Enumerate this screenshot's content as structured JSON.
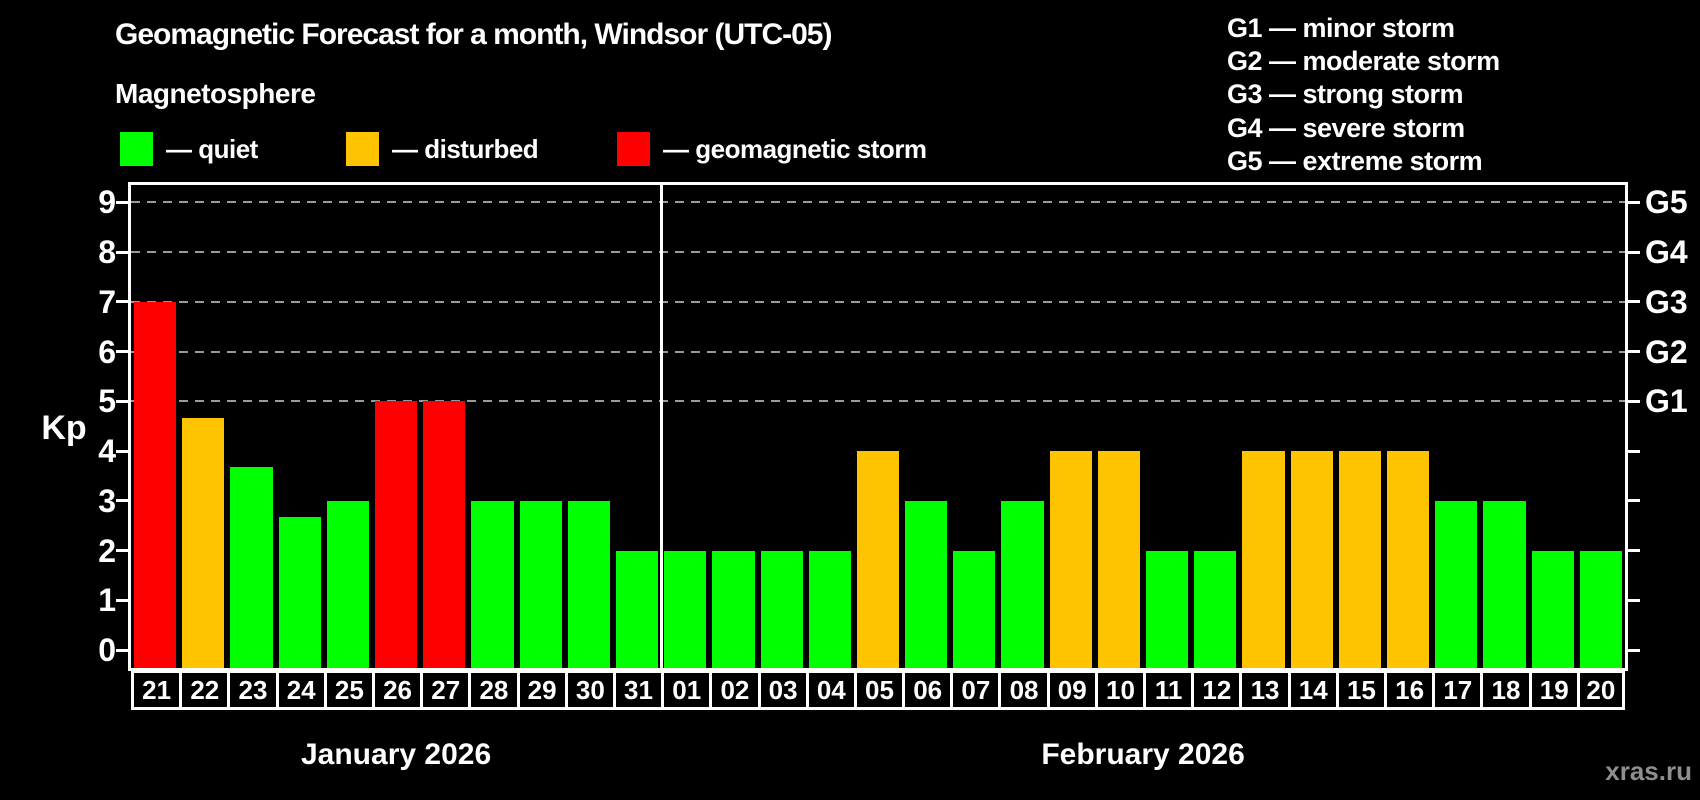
{
  "title": "Geomagnetic Forecast for a month, Windsor (UTC-05)",
  "subtitle": "Magnetosphere",
  "legend": {
    "items": [
      {
        "key": "quiet",
        "label": "— quiet",
        "color": "#00ff00"
      },
      {
        "key": "disturbed",
        "label": "— disturbed",
        "color": "#ffc400"
      },
      {
        "key": "storm",
        "label": "— geomagnetic storm",
        "color": "#ff0000"
      }
    ]
  },
  "g_legend": {
    "items": [
      "G1 — minor storm",
      "G2 — moderate storm",
      "G3 — strong storm",
      "G4 — severe storm",
      "G5 — extreme storm"
    ]
  },
  "y_axis": {
    "label": "Kp",
    "ticks": [
      0,
      1,
      2,
      3,
      4,
      5,
      6,
      7,
      8,
      9
    ]
  },
  "right_axis": {
    "labels": [
      {
        "text": "G1",
        "value": 5
      },
      {
        "text": "G2",
        "value": 6
      },
      {
        "text": "G3",
        "value": 7
      },
      {
        "text": "G4",
        "value": 8
      },
      {
        "text": "G5",
        "value": 9
      }
    ]
  },
  "watermark": "xras.ru",
  "chart_data": {
    "type": "bar",
    "categories": [
      "21",
      "22",
      "23",
      "24",
      "25",
      "26",
      "27",
      "28",
      "29",
      "30",
      "31",
      "01",
      "02",
      "03",
      "04",
      "05",
      "06",
      "07",
      "08",
      "09",
      "10",
      "11",
      "12",
      "13",
      "14",
      "15",
      "16",
      "17",
      "18",
      "19",
      "20"
    ],
    "values": [
      7,
      4.67,
      3.67,
      2.67,
      3,
      5,
      5,
      3,
      3,
      3,
      2,
      2,
      2,
      2,
      2,
      4,
      3,
      2,
      3,
      4,
      4,
      2,
      2,
      4,
      4,
      4,
      4,
      3,
      3,
      2,
      2
    ],
    "states": [
      "storm",
      "disturbed",
      "quiet",
      "quiet",
      "quiet",
      "storm",
      "storm",
      "quiet",
      "quiet",
      "quiet",
      "quiet",
      "quiet",
      "quiet",
      "quiet",
      "quiet",
      "disturbed",
      "quiet",
      "quiet",
      "quiet",
      "disturbed",
      "disturbed",
      "quiet",
      "quiet",
      "disturbed",
      "disturbed",
      "disturbed",
      "disturbed",
      "quiet",
      "quiet",
      "quiet",
      "quiet"
    ],
    "months": [
      {
        "label": "January 2026",
        "days": 11
      },
      {
        "label": "February 2026",
        "days": 20
      }
    ],
    "title": "Geomagnetic Forecast for a month, Windsor (UTC-05)",
    "xlabel": "",
    "ylabel": "Kp",
    "ylim": [
      -0.36,
      9.34
    ],
    "gridlines": [
      5,
      6,
      7,
      8,
      9
    ],
    "legend_position": "top"
  }
}
